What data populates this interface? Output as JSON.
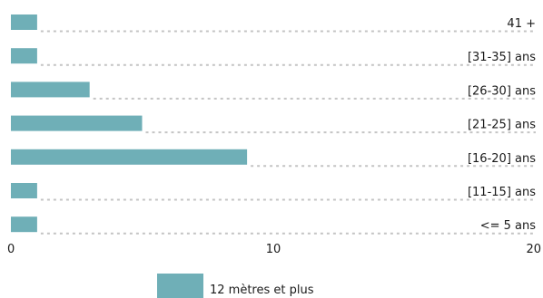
{
  "chart_data": {
    "type": "bar",
    "orientation": "horizontal",
    "categories": [
      "41 +",
      "[31-35] ans",
      "[26-30] ans",
      "[21-25] ans",
      "[16-20] ans",
      "[11-15] ans",
      "<= 5 ans"
    ],
    "series": [
      {
        "name": "12 mètres et plus",
        "values": [
          1,
          1,
          3,
          5,
          9,
          1,
          1
        ],
        "color": "#6fafb7"
      }
    ],
    "xlim": [
      0,
      20
    ],
    "xticks": [
      0,
      10,
      20
    ],
    "legend_position": "bottom",
    "grid": false
  }
}
